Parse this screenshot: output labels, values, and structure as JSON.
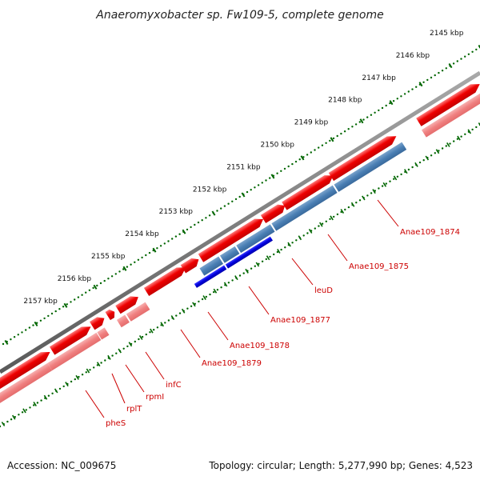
{
  "title": "Anaeromyxobacter sp. Fw109-5, complete genome",
  "ticks": [
    "2145 kbp",
    "2146 kbp",
    "2147 kbp",
    "2148 kbp",
    "2149 kbp",
    "2150 kbp",
    "2151 kbp",
    "2152 kbp",
    "2153 kbp",
    "2154 kbp",
    "2155 kbp",
    "2156 kbp",
    "2157 kbp"
  ],
  "gene_labels": [
    "Anae109_1874",
    "Anae109_1875",
    "leuD",
    "Anae109_1877",
    "Anae109_1878",
    "Anae109_1879",
    "infC",
    "rpmI",
    "rplT",
    "pheS"
  ],
  "footer": {
    "accession": "Accession: NC_009675",
    "stats": "Topology: circular; Length: 5,277,990 bp; Genes: 4,523"
  },
  "colors": {
    "backbone": "#7f7f7f",
    "cds_forward": "#ee0000",
    "cds_reverse_light": "#f08080",
    "gene_blue": "#4a7fb4",
    "gene_blue_dark": "#0000dd",
    "tick_dots": "#006600",
    "label_red": "#cc0000"
  }
}
